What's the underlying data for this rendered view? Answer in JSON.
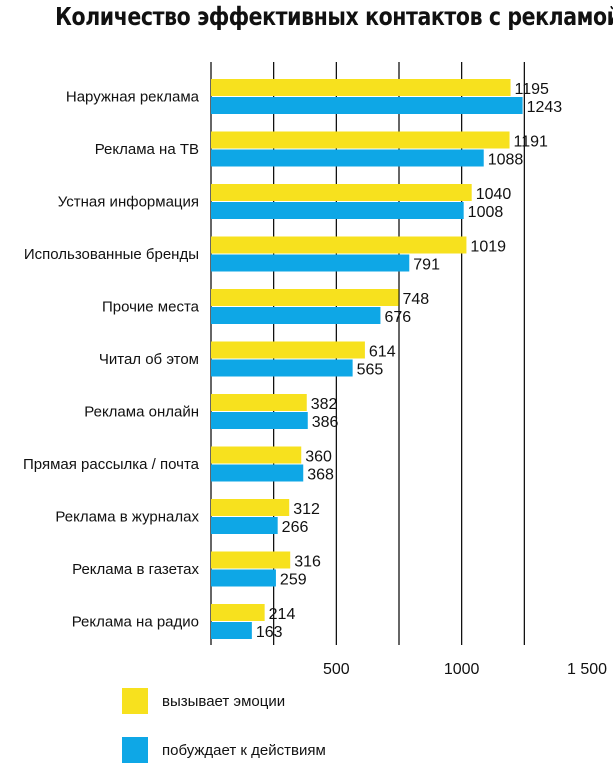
{
  "chart_data": {
    "type": "bar",
    "orientation": "horizontal",
    "title": "Количество эффективных контактов с рекламой",
    "categories": [
      "Наружная реклама",
      "Реклама на ТВ",
      "Устная информация",
      "Использованные бренды",
      "Прочие места",
      "Читал об этом",
      "Реклама онлайн",
      "Прямая рассылка / почта",
      "Реклама в журналах",
      "Реклама в газетах",
      "Реклама на радио"
    ],
    "series": [
      {
        "name": "вызывает эмоции",
        "color": "#f7e11e",
        "values": [
          1195,
          1191,
          1040,
          1019,
          748,
          614,
          382,
          360,
          312,
          316,
          214
        ]
      },
      {
        "name": "побуждает к действиям",
        "color": "#0ea7e6",
        "values": [
          1243,
          1088,
          1008,
          791,
          676,
          565,
          386,
          368,
          266,
          259,
          163
        ]
      }
    ],
    "x_ticks": [
      "500",
      "1000",
      "1 500"
    ],
    "xlim": [
      0,
      1500
    ],
    "grid": true,
    "legend_position": "bottom"
  }
}
